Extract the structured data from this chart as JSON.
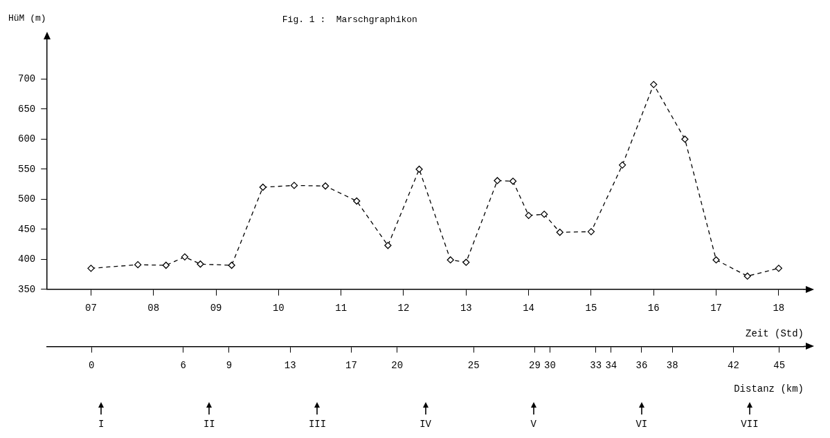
{
  "chart_data": {
    "type": "line",
    "title": "Fig. 1 :  Marschgraphikon",
    "ylabel": "HüM (m)",
    "xlabel": "Zeit (Std)",
    "x2label": "Distanz (km)",
    "x": [
      7,
      7.75,
      8.2,
      8.5,
      8.75,
      9.25,
      9.75,
      10.25,
      10.75,
      11.25,
      11.75,
      12.25,
      12.75,
      13,
      13.5,
      13.75,
      14,
      14.25,
      14.5,
      15,
      15.5,
      16,
      16.5,
      17,
      17.5,
      18
    ],
    "series": [
      {
        "color": "#000000",
        "values": [
          385,
          391,
          390,
          404,
          392,
          390,
          520,
          523,
          522,
          497,
          423,
          550,
          399,
          395,
          531,
          530,
          473,
          475,
          445,
          446,
          557,
          691,
          600,
          399,
          372,
          385
        ]
      }
    ],
    "marker": "diamond",
    "line_style": "dashed",
    "xlim": [
      6.3,
      18.4
    ],
    "xticks": [
      {
        "value": 7,
        "label": "07"
      },
      {
        "value": 8,
        "label": "08"
      },
      {
        "value": 9,
        "label": "09"
      },
      10,
      11,
      12,
      13,
      14,
      15,
      16,
      17,
      18
    ],
    "ylim": [
      350,
      765
    ],
    "yticks": [
      350,
      400,
      450,
      500,
      550,
      600,
      650,
      700
    ],
    "x2lim": [
      -2.9,
      46.6
    ],
    "x2ticks": [
      0,
      6,
      9,
      13,
      17,
      20,
      25,
      29,
      30,
      33,
      34,
      36,
      38,
      42,
      45
    ],
    "annotations": [
      "I",
      "II",
      "III",
      "IV",
      "V",
      "VI",
      "VII"
    ]
  }
}
